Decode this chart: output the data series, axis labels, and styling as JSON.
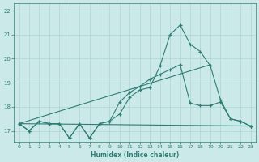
{
  "title": "",
  "xlabel": "Humidex (Indice chaleur)",
  "xlim": [
    -0.5,
    23.5
  ],
  "ylim": [
    16.55,
    22.3
  ],
  "yticks": [
    17,
    18,
    19,
    20,
    21,
    22
  ],
  "xticks": [
    0,
    1,
    2,
    3,
    4,
    5,
    6,
    7,
    8,
    9,
    10,
    11,
    12,
    13,
    14,
    15,
    16,
    17,
    18,
    19,
    20,
    21,
    22,
    23
  ],
  "bg_color": "#cce9e9",
  "grid_color": "#aad4d4",
  "line_color": "#2e7d74",
  "line1": [
    17.3,
    17.0,
    17.4,
    17.3,
    17.3,
    16.7,
    17.3,
    16.7,
    17.3,
    17.4,
    17.7,
    18.4,
    18.7,
    18.8,
    19.7,
    21.0,
    21.4,
    20.6,
    20.3,
    19.7,
    18.3,
    17.5,
    17.4,
    17.2
  ],
  "line2_x": [
    0,
    1,
    2,
    3,
    4,
    5,
    6,
    7,
    8,
    9,
    10,
    11,
    12,
    13,
    14,
    15,
    16,
    17,
    18,
    19,
    20,
    21,
    22,
    23
  ],
  "line2": [
    17.3,
    17.0,
    17.4,
    17.3,
    17.3,
    16.7,
    17.3,
    16.7,
    17.3,
    17.4,
    18.2,
    18.6,
    18.85,
    19.15,
    19.35,
    19.55,
    19.75,
    18.15,
    18.05,
    18.05,
    18.2,
    17.5,
    17.4,
    17.2
  ],
  "line3_x": [
    0,
    23
  ],
  "line3_y": [
    17.3,
    17.2
  ],
  "line4_x": [
    0,
    19
  ],
  "line4_y": [
    17.3,
    19.75
  ]
}
